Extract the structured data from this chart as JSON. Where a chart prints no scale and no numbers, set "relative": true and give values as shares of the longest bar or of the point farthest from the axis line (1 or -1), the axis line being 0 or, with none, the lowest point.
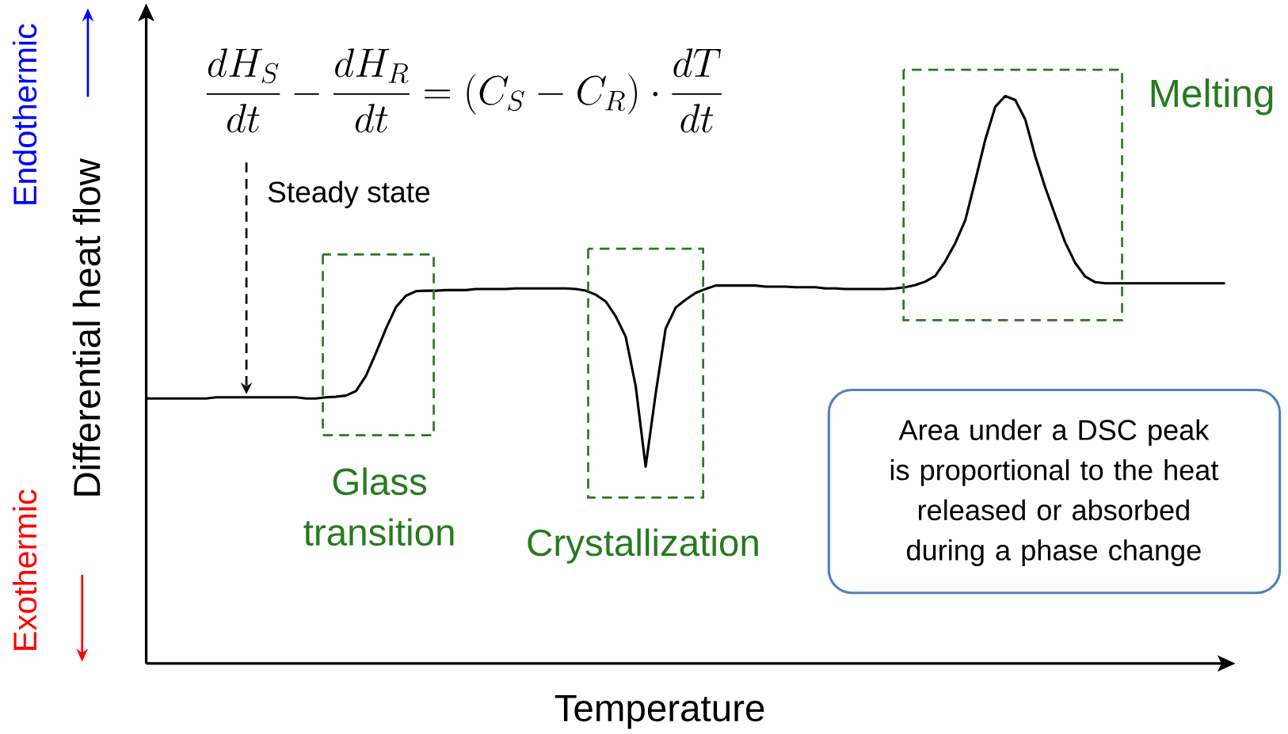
{
  "chart_data": {
    "type": "line",
    "relative": true,
    "xlabel": "Temperature",
    "ylabel": "Differential heat flow",
    "categories": [
      null,
      null,
      null,
      null,
      null,
      null,
      null,
      null,
      null,
      null,
      null,
      null,
      null,
      null,
      null,
      null,
      null,
      null,
      null,
      null,
      null,
      null,
      null,
      null,
      null,
      null,
      null,
      null,
      null,
      null,
      null,
      null,
      null,
      null,
      null,
      null,
      null,
      null,
      null,
      null,
      null,
      null,
      null,
      null,
      null,
      null,
      null,
      null,
      null,
      null,
      null,
      null,
      null,
      null,
      null,
      null,
      null,
      null,
      null,
      null,
      null,
      null,
      null,
      null,
      null,
      null,
      null,
      null,
      null,
      null,
      null,
      null,
      null,
      null,
      null,
      null,
      null,
      null,
      null,
      null,
      null,
      null,
      null,
      null,
      null,
      null,
      null,
      null,
      null,
      null,
      null,
      null,
      null,
      null,
      null,
      null,
      null,
      null,
      null,
      null,
      null,
      null,
      null,
      null,
      null,
      null,
      null,
      null,
      null
    ],
    "series": [
      {
        "color": "#000000",
        "values": [
          0.467,
          0.467,
          0.467,
          0.467,
          0.467,
          0.467,
          0.467,
          0.469,
          0.469,
          0.469,
          0.469,
          0.469,
          0.469,
          0.469,
          0.469,
          0.469,
          0.467,
          0.467,
          0.469,
          0.47,
          0.472,
          0.48,
          0.507,
          0.547,
          0.59,
          0.628,
          0.648,
          0.656,
          0.657,
          0.657,
          0.658,
          0.658,
          0.658,
          0.66,
          0.66,
          0.66,
          0.66,
          0.661,
          0.661,
          0.661,
          0.661,
          0.661,
          0.661,
          0.66,
          0.657,
          0.65,
          0.638,
          0.612,
          0.576,
          0.489,
          0.347,
          0.475,
          0.59,
          0.627,
          0.641,
          0.653,
          0.66,
          0.666,
          0.666,
          0.666,
          0.666,
          0.666,
          0.664,
          0.664,
          0.664,
          0.663,
          0.663,
          0.663,
          0.661,
          0.661,
          0.66,
          0.66,
          0.66,
          0.66,
          0.66,
          0.661,
          0.663,
          0.667,
          0.673,
          0.683,
          0.709,
          0.741,
          0.781,
          0.851,
          0.923,
          0.981,
          1,
          0.993,
          0.959,
          0.894,
          0.839,
          0.79,
          0.742,
          0.706,
          0.682,
          0.672,
          0.67,
          0.67,
          0.67,
          0.67,
          0.67,
          0.67,
          0.67,
          0.67,
          0.67,
          0.67,
          0.67,
          0.67,
          0.67
        ]
      }
    ],
    "annotations": [
      "\\frac{dH_S}{dt}-\\frac{dH_R}{dt}=\\left(C_S-C_R\\right)\\cdot\\frac{dT}{dt}",
      "Steady state",
      "Glass transition",
      "Crystallization",
      "Melting",
      "Area under a DSC peak is proportional to the heat released or absorbed during a phase change",
      "Endothermic",
      "Exothermic"
    ]
  }
}
